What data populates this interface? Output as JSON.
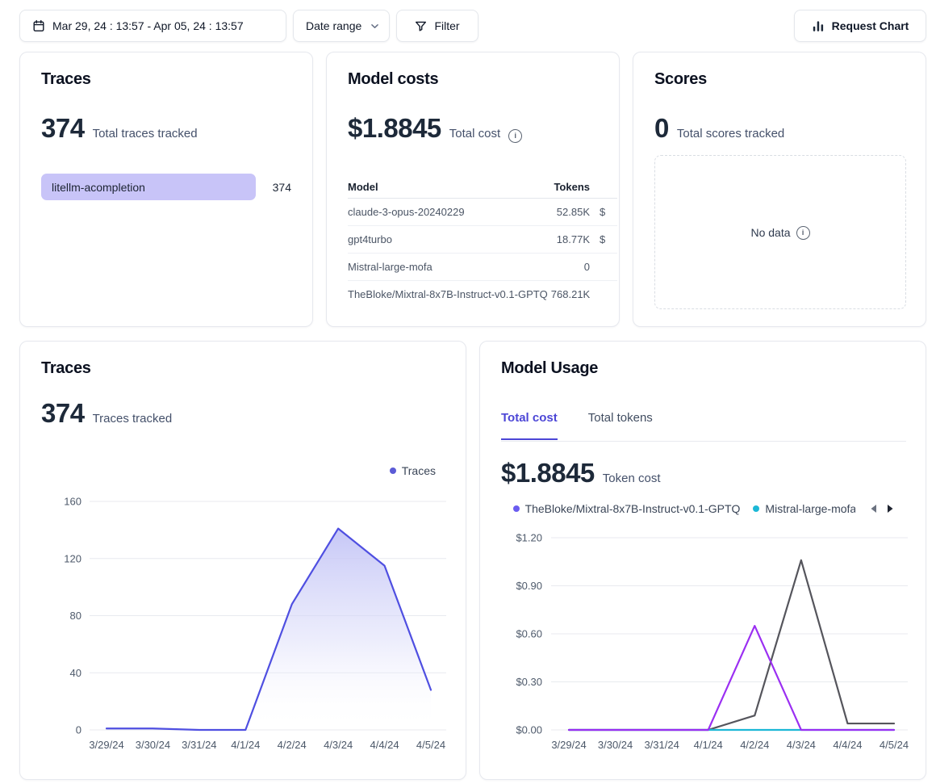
{
  "topbar": {
    "date_range_value": "Mar 29, 24 : 13:57 - Apr 05, 24 : 13:57",
    "date_range_label": "Date range",
    "filter_label": "Filter",
    "request_chart_label": "Request Chart"
  },
  "cards": {
    "traces_summary": {
      "title": "Traces",
      "value": "374",
      "label": "Total traces tracked",
      "bars": [
        {
          "name": "litellm-acompletion",
          "count": "374",
          "bar_color": "#c8c4f8"
        }
      ]
    },
    "model_costs": {
      "title": "Model costs",
      "value": "$1.8845",
      "label": "Total cost",
      "columns": {
        "model": "Model",
        "tokens": "Tokens"
      },
      "rows": [
        {
          "model": "claude-3-opus-20240229",
          "tokens": "52.85K",
          "cost_visible": "$"
        },
        {
          "model": "gpt4turbo",
          "tokens": "18.77K",
          "cost_visible": "$"
        },
        {
          "model": "Mistral-large-mofa",
          "tokens": "0",
          "cost_visible": ""
        },
        {
          "model": "TheBloke/Mixtral-8x7B-Instruct-v0.1-GPTQ",
          "tokens": "768.21K",
          "cost_visible": ""
        }
      ]
    },
    "scores": {
      "title": "Scores",
      "value": "0",
      "label": "Total scores tracked",
      "empty_text": "No data"
    },
    "traces_chart": {
      "title": "Traces",
      "value": "374",
      "label": "Traces tracked"
    },
    "model_usage": {
      "title": "Model Usage",
      "tabs": [
        "Total cost",
        "Total tokens"
      ],
      "active_tab": "Total cost",
      "value": "$1.8845",
      "label": "Token cost"
    }
  },
  "chart_data": [
    {
      "id": "traces-over-time",
      "type": "area",
      "title": "Traces",
      "categories": [
        "3/29/24",
        "3/30/24",
        "3/31/24",
        "4/1/24",
        "4/2/24",
        "4/3/24",
        "4/4/24",
        "4/5/24"
      ],
      "series": [
        {
          "name": "Traces",
          "color": "#4f4fe1",
          "values": [
            1,
            1,
            0,
            0,
            88,
            141,
            115,
            28
          ],
          "area": true
        }
      ],
      "ylim": [
        0,
        160
      ],
      "yticks": [
        {
          "value": 0,
          "label": "0"
        },
        {
          "value": 40,
          "label": "40"
        },
        {
          "value": 80,
          "label": "80"
        },
        {
          "value": 120,
          "label": "120"
        },
        {
          "value": 160,
          "label": "160"
        }
      ],
      "legend": [
        {
          "label": "Traces",
          "color": "#5b5bd6"
        }
      ],
      "legend_position": "top-right",
      "grid": true
    },
    {
      "id": "model-usage-total-cost",
      "type": "line",
      "title": "Model Usage - Total cost",
      "categories": [
        "3/29/24",
        "3/30/24",
        "3/31/24",
        "4/1/24",
        "4/2/24",
        "4/3/24",
        "4/4/24",
        "4/5/24"
      ],
      "series": [
        {
          "name": "",
          "label_visible": false,
          "color": "#55555c",
          "values": [
            0,
            0,
            0,
            0,
            0.09,
            1.06,
            0.04,
            0.04
          ]
        },
        {
          "name": "Mistral-large-mofa",
          "color": "#1cb8d6",
          "values": [
            0,
            0,
            0,
            0,
            0,
            0,
            0,
            0
          ]
        },
        {
          "name": "TheBloke/Mixtral-8x7B-Instruct-v0.1-GPTQ",
          "color": "#9b2ff2",
          "values": [
            0,
            0,
            0,
            0,
            0.65,
            0,
            0,
            0
          ]
        }
      ],
      "ylim": [
        0,
        1.2
      ],
      "yticks": [
        {
          "value": 0.0,
          "label": "$0.00"
        },
        {
          "value": 0.3,
          "label": "$0.30"
        },
        {
          "value": 0.6,
          "label": "$0.60"
        },
        {
          "value": 0.9,
          "label": "$0.90"
        },
        {
          "value": 1.2,
          "label": "$1.20"
        }
      ],
      "legend": [
        {
          "label": "TheBloke/Mixtral-8x7B-Instruct-v0.1-GPTQ",
          "color": "#6a5cf0",
          "truncated": false
        },
        {
          "label": "Mistral-large-mofa",
          "color": "#1cb8d6",
          "truncated": true
        }
      ],
      "grid": true
    }
  ]
}
